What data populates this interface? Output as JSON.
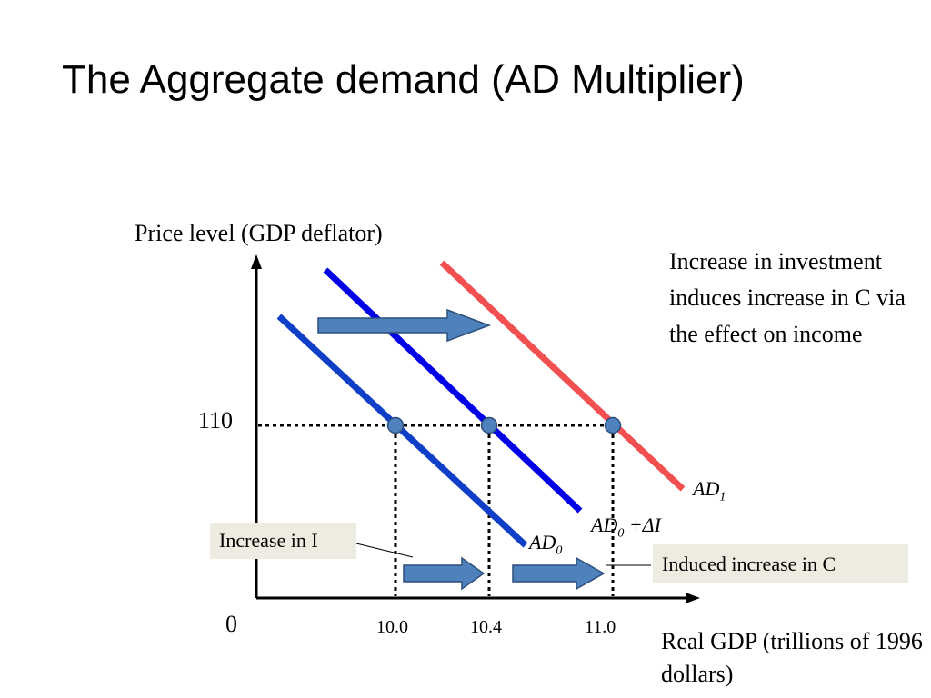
{
  "title": "The Aggregate demand (AD Multiplier)",
  "y_axis_label": "Price level (GDP deflator)",
  "x_axis_label": "Real GDP (trillions of 1996 dollars)",
  "origin_label": "0",
  "price_level": "110",
  "x_ticks": [
    "10.0",
    "10.4",
    "11.0"
  ],
  "annotation": "Increase in investment induces increase in C via the effect on income",
  "box_increase_in_i": "Increase in I",
  "box_induced_c": "Induced increase in C",
  "curves": {
    "ad0": {
      "main": "AD",
      "sub": "0"
    },
    "ad0_plus_di": {
      "main": "AD",
      "sub": "0",
      "suffix": " +ΔI"
    },
    "ad1": {
      "main": "AD",
      "sub": "1"
    }
  },
  "colors": {
    "ad0": "#0e3fc6",
    "ad0_plus_di": "#0000e6",
    "ad1": "#f25050",
    "arrow": "#4f81bd",
    "box": "#eeece1"
  }
}
